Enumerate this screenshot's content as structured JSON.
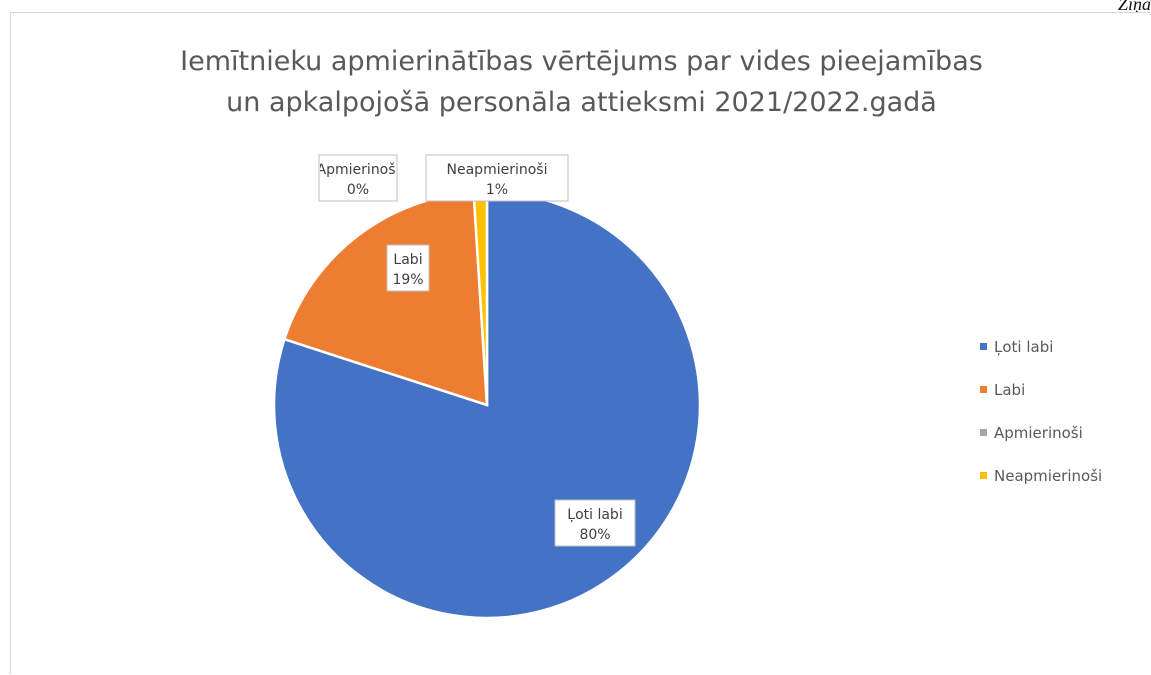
{
  "page": {
    "header_fragment": "Ziņa"
  },
  "chart_data": {
    "type": "pie",
    "title_lines": [
      "Iemītnieku apmierinātības vērtējums par vides pieejamības",
      "un apkalpojošā personāla attieksmi 2021/2022.gadā"
    ],
    "categories": [
      "Ļoti labi",
      "Labi",
      "Apmierinoši",
      "Neapmierinoši"
    ],
    "values": [
      80,
      19,
      0,
      1
    ],
    "data_labels": [
      {
        "category": "Ļoti labi",
        "percent": "80%"
      },
      {
        "category": "Labi",
        "percent": "19%"
      },
      {
        "category": "Apmierinoši",
        "percent": "0%"
      },
      {
        "category": "Neapmierinoši",
        "percent": "1%"
      }
    ],
    "colors": [
      "#4472C4",
      "#ED7D31",
      "#A5A5A5",
      "#FFC000"
    ],
    "legend": {
      "placement": "right",
      "entries": [
        "Ļoti labi",
        "Labi",
        "Apmierinoši",
        "Neapmierinoši"
      ]
    }
  }
}
